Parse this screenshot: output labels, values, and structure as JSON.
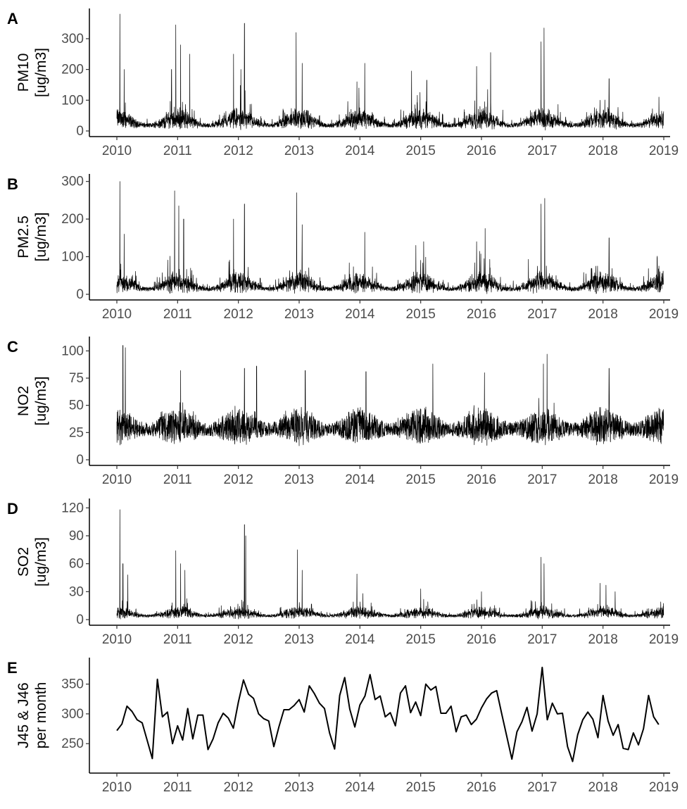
{
  "chart_data": [
    {
      "type": "line",
      "panel_label": "A",
      "ylabel_lines": [
        "PM10",
        "[ug/m3]"
      ],
      "x_ticks": [
        "2010",
        "2011",
        "2012",
        "2013",
        "2014",
        "2015",
        "2016",
        "2017",
        "2018",
        "2019"
      ],
      "xlim": [
        2010,
        2019
      ],
      "y_ticks": [
        0,
        100,
        200,
        300
      ],
      "ylim": [
        0,
        380
      ],
      "resolution": "daily",
      "baseline": 18,
      "seasonal_winter_amplitude": 45,
      "noise": 22,
      "peaks": [
        {
          "x": 2010.05,
          "y": 385
        },
        {
          "x": 2010.12,
          "y": 200
        },
        {
          "x": 2010.9,
          "y": 200
        },
        {
          "x": 2010.97,
          "y": 345
        },
        {
          "x": 2011.05,
          "y": 280
        },
        {
          "x": 2011.2,
          "y": 250
        },
        {
          "x": 2011.92,
          "y": 250
        },
        {
          "x": 2012.1,
          "y": 350
        },
        {
          "x": 2012.04,
          "y": 200
        },
        {
          "x": 2012.95,
          "y": 320
        },
        {
          "x": 2013.05,
          "y": 220
        },
        {
          "x": 2013.95,
          "y": 160
        },
        {
          "x": 2014.08,
          "y": 220
        },
        {
          "x": 2014.85,
          "y": 195
        },
        {
          "x": 2015.1,
          "y": 165
        },
        {
          "x": 2015.92,
          "y": 210
        },
        {
          "x": 2016.15,
          "y": 255
        },
        {
          "x": 2016.98,
          "y": 290
        },
        {
          "x": 2017.03,
          "y": 335
        },
        {
          "x": 2017.95,
          "y": 100
        },
        {
          "x": 2018.1,
          "y": 170
        },
        {
          "x": 2018.92,
          "y": 110
        }
      ]
    },
    {
      "type": "line",
      "panel_label": "B",
      "ylabel_lines": [
        "PM2.5",
        "[ug/m3]"
      ],
      "x_ticks": [
        "2010",
        "2011",
        "2012",
        "2013",
        "2014",
        "2015",
        "2016",
        "2017",
        "2018",
        "2019"
      ],
      "xlim": [
        2010,
        2019
      ],
      "y_ticks": [
        0,
        100,
        200,
        300
      ],
      "ylim": [
        0,
        305
      ],
      "resolution": "daily",
      "baseline": 14,
      "seasonal_winter_amplitude": 38,
      "noise": 18,
      "peaks": [
        {
          "x": 2010.05,
          "y": 300
        },
        {
          "x": 2010.12,
          "y": 160
        },
        {
          "x": 2010.95,
          "y": 275
        },
        {
          "x": 2011.02,
          "y": 235
        },
        {
          "x": 2011.1,
          "y": 200
        },
        {
          "x": 2011.92,
          "y": 200
        },
        {
          "x": 2012.1,
          "y": 240
        },
        {
          "x": 2012.96,
          "y": 270
        },
        {
          "x": 2013.05,
          "y": 185
        },
        {
          "x": 2014.08,
          "y": 165
        },
        {
          "x": 2014.92,
          "y": 130
        },
        {
          "x": 2015.05,
          "y": 140
        },
        {
          "x": 2015.92,
          "y": 140
        },
        {
          "x": 2016.06,
          "y": 175
        },
        {
          "x": 2016.98,
          "y": 240
        },
        {
          "x": 2017.04,
          "y": 255
        },
        {
          "x": 2018.1,
          "y": 150
        },
        {
          "x": 2018.92,
          "y": 75
        }
      ]
    },
    {
      "type": "line",
      "panel_label": "C",
      "ylabel_lines": [
        "NO2",
        "[ug/m3]"
      ],
      "x_ticks": [
        "2010",
        "2011",
        "2012",
        "2013",
        "2014",
        "2015",
        "2016",
        "2017",
        "2018",
        "2019"
      ],
      "xlim": [
        2010,
        2019
      ],
      "y_ticks": [
        0,
        25,
        50,
        75,
        100
      ],
      "ylim": [
        0,
        108
      ],
      "resolution": "daily",
      "baseline": 28,
      "seasonal_winter_amplitude": 6,
      "noise": 20,
      "peaks": [
        {
          "x": 2010.1,
          "y": 105
        },
        {
          "x": 2010.14,
          "y": 103
        },
        {
          "x": 2011.05,
          "y": 82
        },
        {
          "x": 2012.1,
          "y": 84
        },
        {
          "x": 2012.3,
          "y": 86
        },
        {
          "x": 2013.1,
          "y": 82
        },
        {
          "x": 2014.1,
          "y": 81
        },
        {
          "x": 2015.2,
          "y": 88
        },
        {
          "x": 2016.05,
          "y": 80
        },
        {
          "x": 2017.02,
          "y": 88
        },
        {
          "x": 2017.08,
          "y": 97
        },
        {
          "x": 2018.1,
          "y": 84
        }
      ]
    },
    {
      "type": "line",
      "panel_label": "D",
      "ylabel_lines": [
        "SO2",
        "[ug/m3]"
      ],
      "x_ticks": [
        "2010",
        "2011",
        "2012",
        "2013",
        "2014",
        "2015",
        "2016",
        "2017",
        "2018",
        "2019"
      ],
      "xlim": [
        2010,
        2019
      ],
      "y_ticks": [
        0,
        30,
        60,
        90,
        120
      ],
      "ylim": [
        0,
        124
      ],
      "resolution": "daily",
      "baseline": 4,
      "seasonal_winter_amplitude": 8,
      "noise": 5,
      "peaks": [
        {
          "x": 2010.05,
          "y": 118
        },
        {
          "x": 2010.1,
          "y": 60
        },
        {
          "x": 2010.18,
          "y": 48
        },
        {
          "x": 2010.97,
          "y": 74
        },
        {
          "x": 2011.05,
          "y": 60
        },
        {
          "x": 2011.12,
          "y": 53
        },
        {
          "x": 2012.1,
          "y": 102
        },
        {
          "x": 2012.12,
          "y": 90
        },
        {
          "x": 2012.97,
          "y": 75
        },
        {
          "x": 2013.05,
          "y": 53
        },
        {
          "x": 2013.95,
          "y": 49
        },
        {
          "x": 2014.05,
          "y": 28
        },
        {
          "x": 2015.0,
          "y": 33
        },
        {
          "x": 2016.0,
          "y": 30
        },
        {
          "x": 2016.98,
          "y": 67
        },
        {
          "x": 2017.03,
          "y": 60
        },
        {
          "x": 2017.95,
          "y": 39
        },
        {
          "x": 2018.05,
          "y": 37
        },
        {
          "x": 2018.2,
          "y": 30
        },
        {
          "x": 2018.95,
          "y": 19
        }
      ]
    },
    {
      "type": "line",
      "panel_label": "E",
      "ylabel_lines": [
        "J45 & J46",
        "per month"
      ],
      "x_ticks": [
        "2010",
        "2011",
        "2012",
        "2013",
        "2014",
        "2015",
        "2016",
        "2017",
        "2018",
        "2019"
      ],
      "xlim": [
        2010,
        2019
      ],
      "y_ticks": [
        250,
        300,
        350
      ],
      "ylim": [
        210,
        385
      ],
      "resolution": "monthly",
      "x_start": 2010.0,
      "x_step": 0.08333333,
      "values": [
        272,
        283,
        313,
        304,
        290,
        285,
        255,
        225,
        358,
        295,
        303,
        250,
        280,
        256,
        309,
        258,
        298,
        298,
        240,
        258,
        285,
        301,
        293,
        276,
        320,
        357,
        333,
        326,
        300,
        292,
        288,
        245,
        278,
        307,
        307,
        314,
        324,
        303,
        347,
        334,
        318,
        309,
        268,
        241,
        331,
        361,
        308,
        278,
        315,
        330,
        366,
        324,
        330,
        295,
        302,
        280,
        335,
        347,
        302,
        320,
        297,
        350,
        340,
        346,
        301,
        301,
        313,
        270,
        295,
        298,
        282,
        291,
        310,
        325,
        335,
        339,
        300,
        262,
        224,
        270,
        287,
        311,
        271,
        300,
        378,
        290,
        318,
        300,
        301,
        245,
        220,
        265,
        290,
        303,
        291,
        260,
        331,
        288,
        264,
        282,
        242,
        240,
        268,
        248,
        275,
        331,
        295,
        282
      ]
    }
  ]
}
